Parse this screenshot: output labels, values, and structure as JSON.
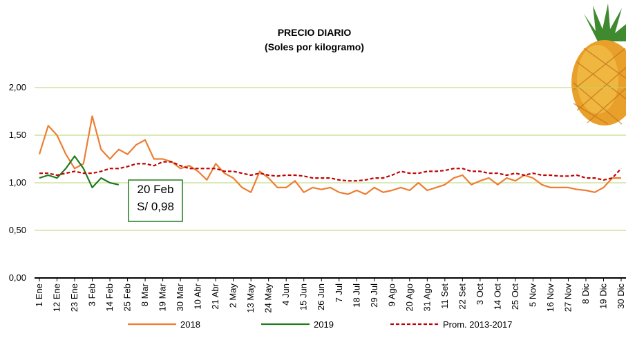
{
  "chart_data": {
    "type": "line",
    "title": "PRECIO DIARIO",
    "subtitle": "(Soles por kilogramo)",
    "categories": [
      "1 Ene",
      null,
      "12 Ene",
      null,
      "23 Ene",
      null,
      "3 Feb",
      null,
      "14 Feb",
      null,
      "25 Feb",
      null,
      "8 Mar",
      null,
      "19 Mar",
      null,
      "30 Mar",
      null,
      "10 Abr",
      null,
      "21 Abr",
      null,
      "2 May",
      null,
      "13 May",
      null,
      "24 May",
      null,
      "4 Jun",
      null,
      "15 Jun",
      null,
      "26 Jun",
      null,
      "7 Jul",
      null,
      "18 Jul",
      null,
      "29 Jul",
      null,
      "9 Ago",
      null,
      "20 Ago",
      null,
      "31 Ago",
      null,
      "11 Set",
      null,
      "22 Set",
      null,
      "3 Oct",
      null,
      "14 Oct",
      null,
      "25 Oct",
      null,
      "5 Nov",
      null,
      "16 Nov",
      null,
      "27 Nov",
      null,
      "8 Dic",
      null,
      "19 Dic",
      null,
      "30 Dic"
    ],
    "series": [
      {
        "name": "2018",
        "color": "#ed7d31",
        "dash": false,
        "values": [
          1.3,
          1.6,
          1.5,
          1.3,
          1.15,
          1.2,
          1.7,
          1.35,
          1.25,
          1.35,
          1.3,
          1.4,
          1.45,
          1.25,
          1.25,
          1.22,
          1.15,
          1.18,
          1.12,
          1.03,
          1.2,
          1.1,
          1.05,
          0.95,
          0.9,
          1.12,
          1.05,
          0.95,
          0.95,
          1.02,
          0.9,
          0.95,
          0.93,
          0.95,
          0.9,
          0.88,
          0.92,
          0.88,
          0.95,
          0.9,
          0.92,
          0.95,
          0.92,
          1.0,
          0.92,
          0.95,
          0.98,
          1.05,
          1.08,
          0.98,
          1.02,
          1.05,
          0.98,
          1.05,
          1.02,
          1.08,
          1.05,
          0.98,
          0.95,
          0.95,
          0.95,
          0.93,
          0.92,
          0.9,
          0.95,
          1.05,
          1.05
        ]
      },
      {
        "name": "2019",
        "color": "#1e7b1e",
        "dash": false,
        "values": [
          1.05,
          1.08,
          1.05,
          1.15,
          1.28,
          1.15,
          0.95,
          1.05,
          1.0,
          0.98,
          null,
          null,
          null,
          null,
          null,
          null,
          null,
          null,
          null,
          null,
          null,
          null,
          null,
          null,
          null,
          null,
          null,
          null,
          null,
          null,
          null,
          null,
          null,
          null,
          null,
          null,
          null,
          null,
          null,
          null,
          null,
          null,
          null,
          null,
          null,
          null,
          null,
          null,
          null,
          null,
          null,
          null,
          null,
          null,
          null,
          null,
          null,
          null,
          null,
          null,
          null,
          null,
          null,
          null,
          null,
          null,
          null
        ]
      },
      {
        "name": "Prom. 2013-2017",
        "color": "#c00000",
        "dash": true,
        "values": [
          1.1,
          1.1,
          1.08,
          1.1,
          1.12,
          1.1,
          1.1,
          1.12,
          1.15,
          1.15,
          1.17,
          1.2,
          1.2,
          1.18,
          1.22,
          1.22,
          1.18,
          1.15,
          1.15,
          1.15,
          1.15,
          1.12,
          1.12,
          1.1,
          1.08,
          1.1,
          1.08,
          1.07,
          1.08,
          1.08,
          1.07,
          1.05,
          1.05,
          1.05,
          1.03,
          1.02,
          1.02,
          1.03,
          1.05,
          1.05,
          1.08,
          1.12,
          1.1,
          1.1,
          1.12,
          1.12,
          1.13,
          1.15,
          1.15,
          1.12,
          1.12,
          1.1,
          1.1,
          1.08,
          1.1,
          1.08,
          1.1,
          1.08,
          1.08,
          1.07,
          1.07,
          1.08,
          1.05,
          1.05,
          1.03,
          1.05,
          1.15
        ]
      }
    ],
    "ylim": [
      0,
      2
    ],
    "yticks": [
      {
        "value": 0,
        "label": "0,00"
      },
      {
        "value": 0.5,
        "label": "0,50"
      },
      {
        "value": 1,
        "label": "1,00"
      },
      {
        "value": 1.5,
        "label": "1,50"
      },
      {
        "value": 2,
        "label": "2,00"
      }
    ],
    "grid": true,
    "annotations": [
      "20 Feb",
      "S/ 0,98"
    ]
  }
}
